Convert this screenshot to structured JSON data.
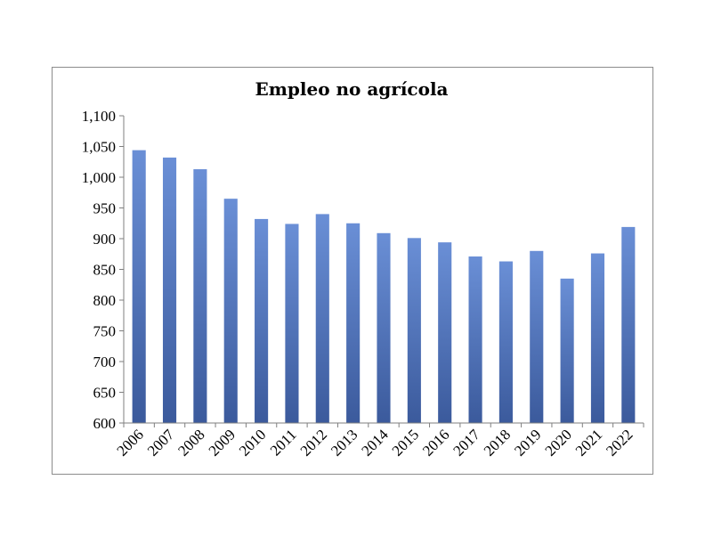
{
  "chart_data": {
    "type": "bar",
    "title": "Empleo no agrícola",
    "xlabel": "",
    "ylabel": "",
    "categories": [
      "2006",
      "2007",
      "2008",
      "2009",
      "2010",
      "2011",
      "2012",
      "2013",
      "2014",
      "2015",
      "2016",
      "2017",
      "2018",
      "2019",
      "2020",
      "2021",
      "2022"
    ],
    "values": [
      1044,
      1032,
      1013,
      965,
      932,
      924,
      940,
      925,
      909,
      901,
      894,
      871,
      863,
      880,
      835,
      876,
      919
    ],
    "ylim": [
      600,
      1100
    ],
    "yticks": [
      "600",
      "650",
      "700",
      "750",
      "800",
      "850",
      "900",
      "950",
      "1,000",
      "1,050",
      "1,100"
    ],
    "grid": false,
    "legend": "none",
    "bar_color_top": "#6a8fd6",
    "bar_color_bottom": "#3b5a9c"
  }
}
